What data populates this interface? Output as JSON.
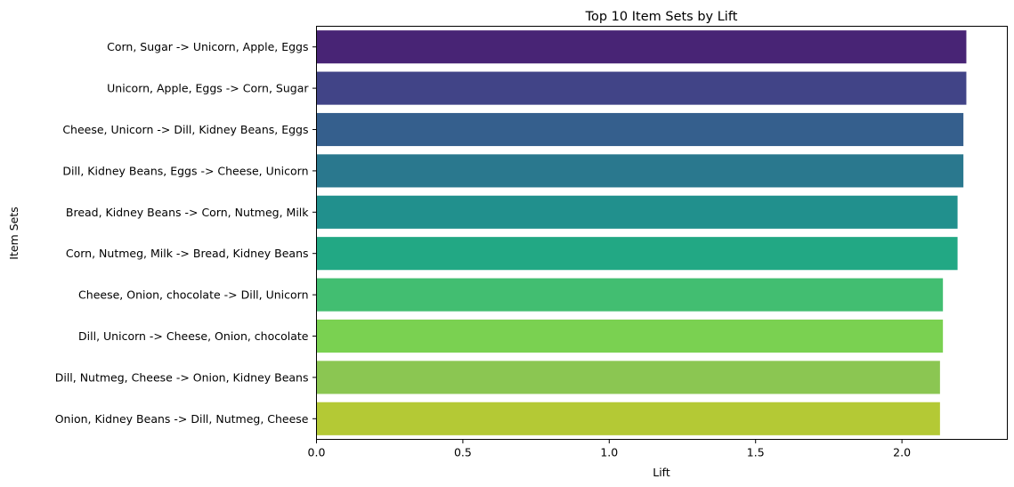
{
  "chart_data": {
    "type": "bar",
    "orientation": "horizontal",
    "title": "Top 10 Item Sets by Lift",
    "xlabel": "Lift",
    "ylabel": "Item Sets",
    "xlim": [
      0,
      2.36
    ],
    "xticks": [
      0.0,
      0.5,
      1.0,
      1.5,
      2.0
    ],
    "xtick_labels": [
      "0.0",
      "0.5",
      "1.0",
      "1.5",
      "2.0"
    ],
    "grid": false,
    "categories": [
      "Corn, Sugar -> Unicorn, Apple, Eggs",
      "Unicorn, Apple, Eggs -> Corn, Sugar",
      "Cheese, Unicorn -> Dill, Kidney Beans, Eggs",
      "Dill, Kidney Beans, Eggs -> Cheese, Unicorn",
      "Bread, Kidney Beans -> Corn, Nutmeg, Milk",
      "Corn, Nutmeg, Milk -> Bread, Kidney Beans",
      "Cheese, Onion, chocolate -> Dill, Unicorn",
      "Dill, Unicorn -> Cheese, Onion, chocolate",
      "Dill, Nutmeg, Cheese -> Onion, Kidney Beans",
      "Onion, Kidney Beans -> Dill, Nutmeg, Cheese"
    ],
    "values": [
      2.22,
      2.22,
      2.21,
      2.21,
      2.19,
      2.19,
      2.14,
      2.14,
      2.13,
      2.13
    ],
    "colors": [
      "#482475",
      "#414487",
      "#355f8d",
      "#2a788e",
      "#21908d",
      "#22a884",
      "#42be71",
      "#7ad151",
      "#8bc652",
      "#b4c935"
    ]
  }
}
